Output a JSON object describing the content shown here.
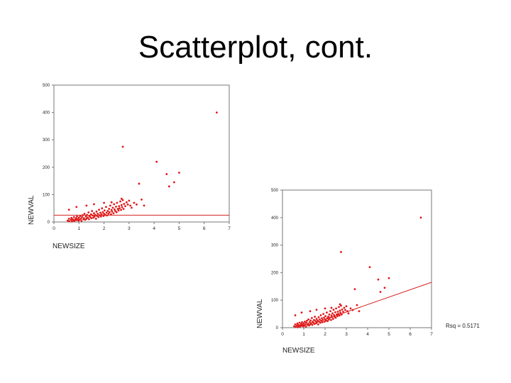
{
  "title": "Scatterplot, cont.",
  "chart_data": [
    {
      "type": "scatter",
      "xlabel": "NEWSIZE",
      "ylabel": "NEWVAL",
      "xlim": [
        0,
        7
      ],
      "ylim": [
        0,
        500
      ],
      "xticks": [
        "0",
        "1",
        "2",
        "3",
        "4",
        "5",
        "6",
        "7"
      ],
      "yticks": [
        "0",
        "100",
        "200",
        "300",
        "400",
        "500"
      ],
      "grid": false,
      "fit_line": {
        "type": "horizontal",
        "y": 25,
        "color": "#d62020"
      },
      "point_color": "#e01818",
      "points": [
        [
          0.55,
          5
        ],
        [
          0.6,
          12
        ],
        [
          0.62,
          3
        ],
        [
          0.68,
          8
        ],
        [
          0.7,
          15
        ],
        [
          0.72,
          2
        ],
        [
          0.75,
          10
        ],
        [
          0.78,
          6
        ],
        [
          0.8,
          18
        ],
        [
          0.82,
          4
        ],
        [
          0.85,
          9
        ],
        [
          0.88,
          14
        ],
        [
          0.9,
          7
        ],
        [
          0.92,
          20
        ],
        [
          0.95,
          11
        ],
        [
          0.98,
          5
        ],
        [
          1.0,
          16
        ],
        [
          1.02,
          8
        ],
        [
          1.05,
          22
        ],
        [
          1.08,
          12
        ],
        [
          1.1,
          4
        ],
        [
          1.12,
          18
        ],
        [
          1.15,
          25
        ],
        [
          1.18,
          10
        ],
        [
          1.2,
          14
        ],
        [
          1.22,
          30
        ],
        [
          1.25,
          8
        ],
        [
          1.28,
          20
        ],
        [
          1.3,
          12
        ],
        [
          1.32,
          26
        ],
        [
          1.35,
          16
        ],
        [
          1.38,
          35
        ],
        [
          1.4,
          10
        ],
        [
          1.42,
          22
        ],
        [
          1.45,
          18
        ],
        [
          1.48,
          28
        ],
        [
          1.5,
          14
        ],
        [
          1.52,
          40
        ],
        [
          1.55,
          24
        ],
        [
          1.58,
          16
        ],
        [
          1.6,
          32
        ],
        [
          1.62,
          20
        ],
        [
          1.65,
          26
        ],
        [
          1.68,
          12
        ],
        [
          1.7,
          38
        ],
        [
          1.72,
          22
        ],
        [
          1.75,
          30
        ],
        [
          1.78,
          18
        ],
        [
          1.8,
          45
        ],
        [
          1.82,
          25
        ],
        [
          1.85,
          34
        ],
        [
          1.88,
          20
        ],
        [
          1.9,
          28
        ],
        [
          1.92,
          50
        ],
        [
          1.95,
          36
        ],
        [
          1.98,
          22
        ],
        [
          2.0,
          30
        ],
        [
          2.02,
          42
        ],
        [
          2.05,
          26
        ],
        [
          2.08,
          55
        ],
        [
          2.1,
          34
        ],
        [
          2.12,
          24
        ],
        [
          2.15,
          40
        ],
        [
          2.18,
          30
        ],
        [
          2.2,
          48
        ],
        [
          2.22,
          36
        ],
        [
          2.25,
          60
        ],
        [
          2.28,
          28
        ],
        [
          2.3,
          44
        ],
        [
          2.32,
          38
        ],
        [
          2.35,
          52
        ],
        [
          2.38,
          32
        ],
        [
          2.4,
          65
        ],
        [
          2.42,
          46
        ],
        [
          2.45,
          40
        ],
        [
          2.48,
          56
        ],
        [
          2.5,
          36
        ],
        [
          2.52,
          70
        ],
        [
          2.55,
          48
        ],
        [
          2.58,
          42
        ],
        [
          2.6,
          58
        ],
        [
          2.62,
          50
        ],
        [
          2.65,
          75
        ],
        [
          2.68,
          44
        ],
        [
          2.7,
          62
        ],
        [
          2.72,
          54
        ],
        [
          2.75,
          80
        ],
        [
          2.78,
          48
        ],
        [
          2.8,
          66
        ],
        [
          2.85,
          58
        ],
        [
          2.9,
          72
        ],
        [
          2.95,
          64
        ],
        [
          3.0,
          78
        ],
        [
          3.05,
          60
        ],
        [
          3.1,
          52
        ],
        [
          3.2,
          70
        ],
        [
          3.3,
          64
        ],
        [
          3.5,
          82
        ],
        [
          3.6,
          60
        ],
        [
          0.6,
          45
        ],
        [
          0.9,
          55
        ],
        [
          1.3,
          60
        ],
        [
          1.6,
          65
        ],
        [
          2.0,
          70
        ],
        [
          2.3,
          72
        ],
        [
          2.7,
          85
        ],
        [
          3.4,
          140
        ],
        [
          2.75,
          275
        ],
        [
          4.1,
          220
        ],
        [
          4.6,
          130
        ],
        [
          4.8,
          145
        ],
        [
          4.5,
          175
        ],
        [
          5.0,
          180
        ],
        [
          6.5,
          400
        ]
      ]
    },
    {
      "type": "scatter",
      "xlabel": "NEWSIZE",
      "ylabel": "NEWVAL",
      "xlim": [
        0,
        7
      ],
      "ylim": [
        0,
        500
      ],
      "xticks": [
        "0",
        "1",
        "2",
        "3",
        "4",
        "5",
        "6",
        "7"
      ],
      "yticks": [
        "0",
        "100",
        "200",
        "300",
        "400",
        "500"
      ],
      "grid": false,
      "fit_line": {
        "type": "linear",
        "x0": 2.0,
        "y0": 30,
        "x1": 7.0,
        "y1": 165,
        "color": "#d62020"
      },
      "annotation": "Rsq = 0.5171",
      "point_color": "#e01818",
      "points": [
        [
          0.55,
          5
        ],
        [
          0.6,
          12
        ],
        [
          0.62,
          3
        ],
        [
          0.68,
          8
        ],
        [
          0.7,
          15
        ],
        [
          0.72,
          2
        ],
        [
          0.75,
          10
        ],
        [
          0.78,
          6
        ],
        [
          0.8,
          18
        ],
        [
          0.82,
          4
        ],
        [
          0.85,
          9
        ],
        [
          0.88,
          14
        ],
        [
          0.9,
          7
        ],
        [
          0.92,
          20
        ],
        [
          0.95,
          11
        ],
        [
          0.98,
          5
        ],
        [
          1.0,
          16
        ],
        [
          1.02,
          8
        ],
        [
          1.05,
          22
        ],
        [
          1.08,
          12
        ],
        [
          1.1,
          4
        ],
        [
          1.12,
          18
        ],
        [
          1.15,
          25
        ],
        [
          1.18,
          10
        ],
        [
          1.2,
          14
        ],
        [
          1.22,
          30
        ],
        [
          1.25,
          8
        ],
        [
          1.28,
          20
        ],
        [
          1.3,
          12
        ],
        [
          1.32,
          26
        ],
        [
          1.35,
          16
        ],
        [
          1.38,
          35
        ],
        [
          1.4,
          10
        ],
        [
          1.42,
          22
        ],
        [
          1.45,
          18
        ],
        [
          1.48,
          28
        ],
        [
          1.5,
          14
        ],
        [
          1.52,
          40
        ],
        [
          1.55,
          24
        ],
        [
          1.58,
          16
        ],
        [
          1.6,
          32
        ],
        [
          1.62,
          20
        ],
        [
          1.65,
          26
        ],
        [
          1.68,
          12
        ],
        [
          1.7,
          38
        ],
        [
          1.72,
          22
        ],
        [
          1.75,
          30
        ],
        [
          1.78,
          18
        ],
        [
          1.8,
          45
        ],
        [
          1.82,
          25
        ],
        [
          1.85,
          34
        ],
        [
          1.88,
          20
        ],
        [
          1.9,
          28
        ],
        [
          1.92,
          50
        ],
        [
          1.95,
          36
        ],
        [
          1.98,
          22
        ],
        [
          2.0,
          30
        ],
        [
          2.02,
          42
        ],
        [
          2.05,
          26
        ],
        [
          2.08,
          55
        ],
        [
          2.1,
          34
        ],
        [
          2.12,
          24
        ],
        [
          2.15,
          40
        ],
        [
          2.18,
          30
        ],
        [
          2.2,
          48
        ],
        [
          2.22,
          36
        ],
        [
          2.25,
          60
        ],
        [
          2.28,
          28
        ],
        [
          2.3,
          44
        ],
        [
          2.32,
          38
        ],
        [
          2.35,
          52
        ],
        [
          2.38,
          32
        ],
        [
          2.4,
          65
        ],
        [
          2.42,
          46
        ],
        [
          2.45,
          40
        ],
        [
          2.48,
          56
        ],
        [
          2.5,
          36
        ],
        [
          2.52,
          70
        ],
        [
          2.55,
          48
        ],
        [
          2.58,
          42
        ],
        [
          2.6,
          58
        ],
        [
          2.62,
          50
        ],
        [
          2.65,
          75
        ],
        [
          2.68,
          44
        ],
        [
          2.7,
          62
        ],
        [
          2.72,
          54
        ],
        [
          2.75,
          80
        ],
        [
          2.78,
          48
        ],
        [
          2.8,
          66
        ],
        [
          2.85,
          58
        ],
        [
          2.9,
          72
        ],
        [
          2.95,
          64
        ],
        [
          3.0,
          78
        ],
        [
          3.05,
          60
        ],
        [
          3.1,
          52
        ],
        [
          3.2,
          70
        ],
        [
          3.3,
          64
        ],
        [
          3.5,
          82
        ],
        [
          3.6,
          60
        ],
        [
          0.6,
          45
        ],
        [
          0.9,
          55
        ],
        [
          1.3,
          60
        ],
        [
          1.6,
          65
        ],
        [
          2.0,
          70
        ],
        [
          2.3,
          72
        ],
        [
          2.7,
          85
        ],
        [
          3.4,
          140
        ],
        [
          2.75,
          275
        ],
        [
          4.1,
          220
        ],
        [
          4.6,
          130
        ],
        [
          4.8,
          145
        ],
        [
          4.5,
          175
        ],
        [
          5.0,
          180
        ],
        [
          6.5,
          400
        ]
      ]
    }
  ]
}
